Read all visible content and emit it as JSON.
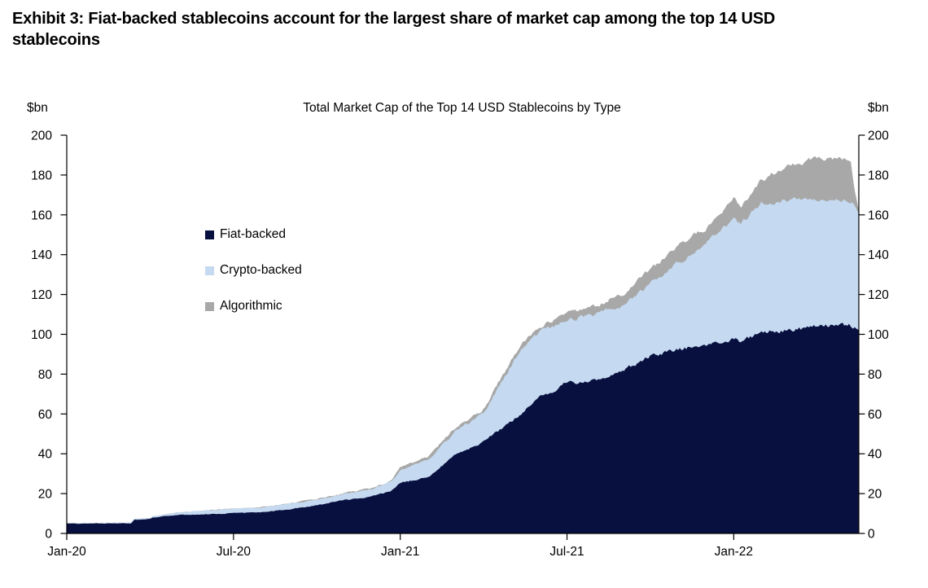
{
  "header": {
    "title_lines": [
      "Exhibit 3: Fiat-backed stablecoins account for the largest share of market cap among the top 14 USD",
      "stablecoins"
    ]
  },
  "chart": {
    "title": "Total Market Cap of the Top 14 USD Stablecoins by Type",
    "unit_left": "$bn",
    "unit_right": "$bn"
  },
  "chart_data": {
    "type": "area",
    "stacked": true,
    "title": "Total Market Cap of the Top 14 USD Stablecoins by Type",
    "unit": "$bn",
    "ylim": [
      0,
      200
    ],
    "ytick_step": 20,
    "grid": false,
    "legend_position": "upper-left-inside",
    "x_axis_note": "months since Jan-2020, data spans Jan-2020 to late May-2022",
    "x_ticks": [
      {
        "t": 0,
        "label": "Jan-20"
      },
      {
        "t": 6,
        "label": "Jul-20"
      },
      {
        "t": 12,
        "label": "Jan-21"
      },
      {
        "t": 18,
        "label": "Jul-21"
      },
      {
        "t": 24,
        "label": "Jan-22"
      }
    ],
    "t": [
      0,
      1,
      2.3,
      2.45,
      3.0,
      3.1,
      4,
      5,
      6,
      7,
      8,
      9,
      10,
      11,
      11.7,
      12,
      13,
      14,
      15,
      16,
      16.6,
      17,
      18,
      19,
      20,
      21,
      22,
      23,
      24,
      24.25,
      25,
      26,
      27,
      27.8,
      28.2,
      28.35,
      28.5
    ],
    "series": [
      {
        "name": "Fiat-backed",
        "color": "#081040",
        "values": [
          4.8,
          4.85,
          4.9,
          6.8,
          7.1,
          7.9,
          9.0,
          9.5,
          10.0,
          10.5,
          12.0,
          14.0,
          16.5,
          18.5,
          21.5,
          25.0,
          28.0,
          39.5,
          46.0,
          56.0,
          63.0,
          67.5,
          75.5,
          76.5,
          82.0,
          88.5,
          92.0,
          95.0,
          97.5,
          96.0,
          101.0,
          101.5,
          103.5,
          104.3,
          104.0,
          103.0,
          102.0
        ]
      },
      {
        "name": "Crypto-backed",
        "color": "#c5daf0",
        "values": [
          0.2,
          0.2,
          0.25,
          0.3,
          0.45,
          0.6,
          1.3,
          1.9,
          2.1,
          2.4,
          2.7,
          2.9,
          3.1,
          3.6,
          4.5,
          6.5,
          9.0,
          11.5,
          14.0,
          28.0,
          33.0,
          33.0,
          31.8,
          32.9,
          31.5,
          36.5,
          43.5,
          50.5,
          60.5,
          58.5,
          65.0,
          66.0,
          64.5,
          63.5,
          63.0,
          61.0,
          58.5
        ]
      },
      {
        "name": "Algorithmic",
        "color": "#a8a8a8",
        "values": [
          0,
          0,
          0,
          0,
          0,
          0,
          0.05,
          0.05,
          0.1,
          0.15,
          0.2,
          0.3,
          0.4,
          0.5,
          0.8,
          1.2,
          1.5,
          2.0,
          2.5,
          2.8,
          3.0,
          3.2,
          2.9,
          4.1,
          6.5,
          7.0,
          9.0,
          7.5,
          10.0,
          9.0,
          11.5,
          17.0,
          20.0,
          20.0,
          20.5,
          8.0,
          1.0
        ]
      }
    ]
  }
}
